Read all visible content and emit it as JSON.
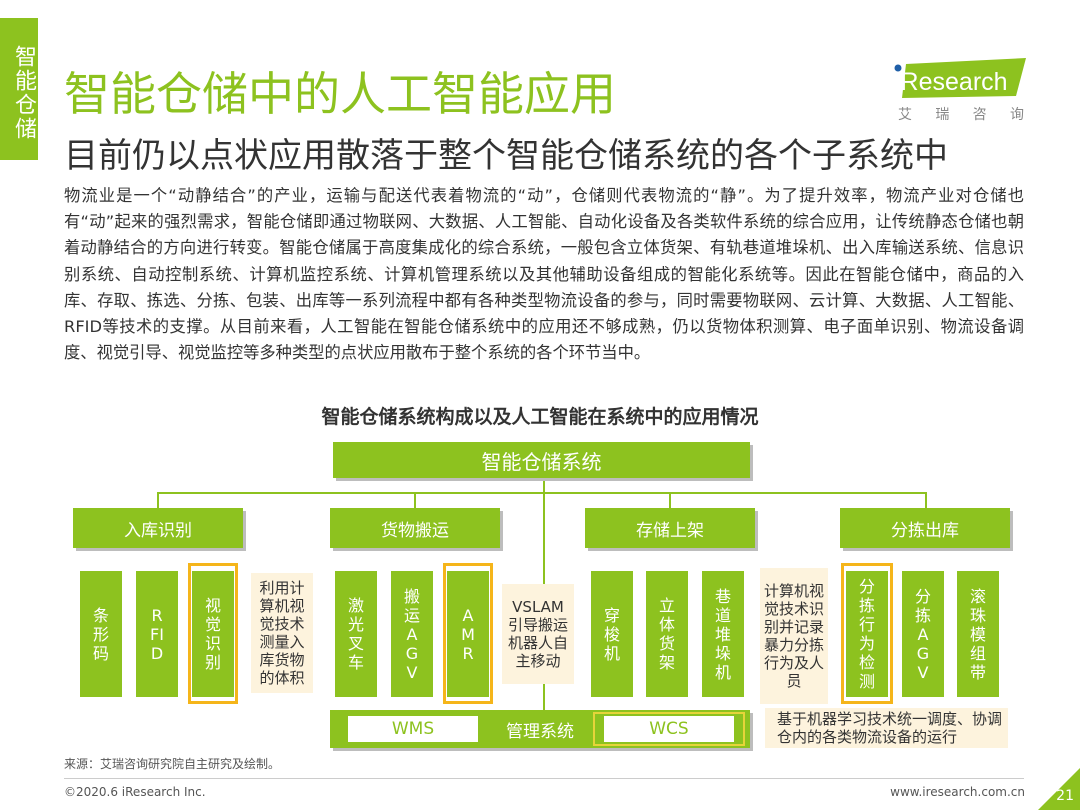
{
  "side_tab": "智能仓储",
  "title": "智能仓储中的人工智能应用",
  "subtitle": "目前仍以点状应用散落于整个智能仓储系统的各个子系统中",
  "logo": {
    "text": "iResearch",
    "cn": [
      "艾",
      "瑞",
      "咨",
      "询"
    ],
    "color": "#8dc21f"
  },
  "body_text": "物流业是一个“动静结合”的产业，运输与配送代表着物流的“动”，仓储则代表物流的“静”。为了提升效率，物流产业对仓储也有“动”起来的强烈需求，智能仓储即通过物联网、大数据、人工智能、自动化设备及各类软件系统的综合应用，让传统静态仓储也朝着动静结合的方向进行转变。智能仓储属于高度集成化的综合系统，一般包含立体货架、有轨巷道堆垛机、出入库输送系统、信息识别系统、自动控制系统、计算机监控系统、计算机管理系统以及其他辅助设备组成的智能化系统等。因此在智能仓储中，商品的入库、存取、拣选、分拣、包装、出库等一系列流程中都有各种类型物流设备的参与，同时需要物联网、云计算、大数据、人工智能、RFID等技术的支撑。从目前来看，人工智能在智能仓储系统中的应用还不够成熟，仍以货物体积测算、电子面单识别、物流设备调度、视觉引导、视觉监控等多种类型的点状应用散布于整个系统的各个环节当中。",
  "diagram": {
    "title": "智能仓储系统构成以及人工智能在系统中的应用情况",
    "root": "智能仓储系统",
    "categories": [
      "入库识别",
      "货物搬运",
      "存储上架",
      "分拣出库"
    ],
    "items": [
      "条形码",
      "RFID",
      "视觉识别",
      "激光叉车",
      "搬运AGV",
      "AMR",
      "穿梭机",
      "立体货架",
      "巷道堆垛机",
      "分拣行为检测",
      "分拣AGV",
      "滚珠模组带"
    ],
    "notes": [
      "利用计算机视觉技术测量入库货物的体积",
      "VSLAM引导搬运机器人自主移动",
      "计算机视觉技术识别并记录暴力分拣行为及人员",
      "基于机器学习技术统一调度、协调仓内的各类物流设备的运行"
    ],
    "management": {
      "wms": "WMS",
      "label": "管理系统",
      "wcs": "WCS"
    },
    "colors": {
      "green": "#8dc21f",
      "highlight": "#f5b51a",
      "note_bg": "#fdf3dd"
    }
  },
  "source": "来源：艾瑞咨询研究院自主研究及绘制。",
  "footer": {
    "copyright": "©2020.6 iResearch Inc.",
    "url": "www.iresearch.com.cn",
    "page": "21"
  }
}
